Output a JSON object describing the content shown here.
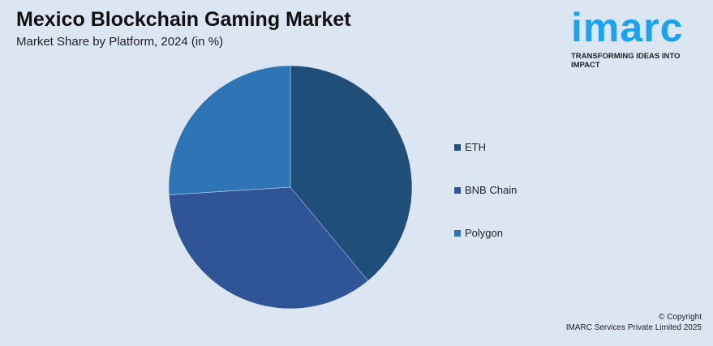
{
  "title": "Mexico Blockchain Gaming Market",
  "subtitle": "Market Share by Platform, 2024 (in %)",
  "logo": {
    "word": "imarc",
    "tagline": "TRANSFORMING IDEAS INTO IMPACT"
  },
  "copyright": {
    "line1": "© Copyright",
    "line2": "IMARC Services Private Limited 2025"
  },
  "chart_data": {
    "type": "pie",
    "title": "Mexico Blockchain Gaming Market",
    "subtitle": "Market Share by Platform, 2024 (in %)",
    "categories": [
      "ETH",
      "BNB Chain",
      "Polygon"
    ],
    "values": [
      39,
      35,
      26
    ],
    "colors": [
      "#1f4e79",
      "#2f5597",
      "#2e75b6"
    ],
    "legend": "right"
  }
}
